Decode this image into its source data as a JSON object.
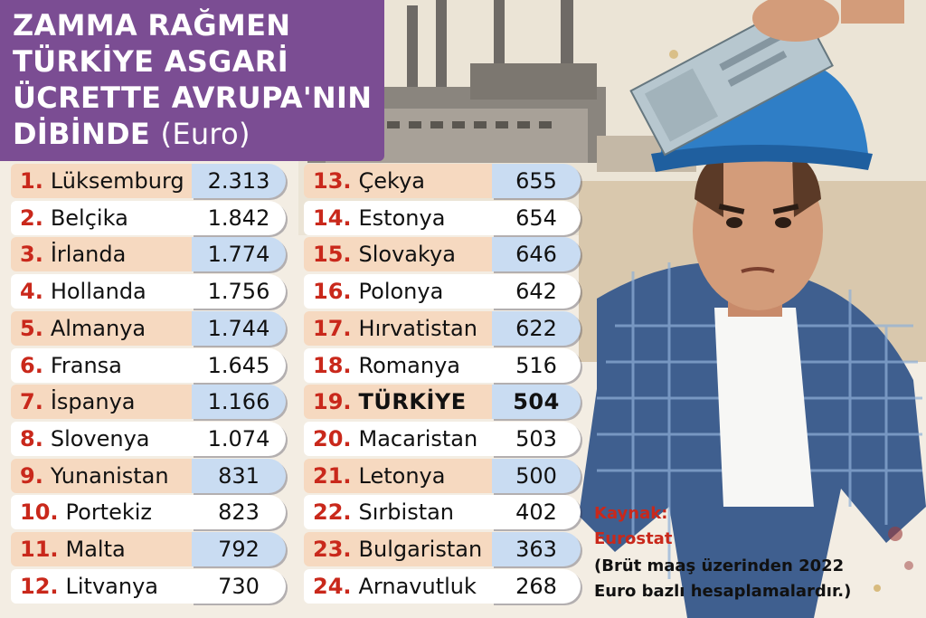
{
  "title_lines": [
    "ZAMMA RAĞMEN",
    "TÜRKİYE ASGARİ",
    "ÜCRETTE AVRUPA'NIN",
    "DİBİNDE"
  ],
  "title_unit": "(Euro)",
  "source": {
    "label": "Kaynak:",
    "name": "Eurostat",
    "note_line1": "(Brüt maaş üzerinden 2022",
    "note_line2": "Euro bazlı hesaplamalardır.)"
  },
  "colors": {
    "title_bg": "#7b4d93",
    "rank_red": "#c9281b",
    "peach": "#f6d9c0",
    "light_blue": "#c9dcf2"
  },
  "chart_data": {
    "type": "table",
    "columns": 2,
    "rows": [
      {
        "rank": "1.",
        "country": "Lüksemburg",
        "value": "2.313"
      },
      {
        "rank": "2.",
        "country": "Belçika",
        "value": "1.842"
      },
      {
        "rank": "3.",
        "country": "İrlanda",
        "value": "1.774"
      },
      {
        "rank": "4.",
        "country": "Hollanda",
        "value": "1.756"
      },
      {
        "rank": "5.",
        "country": "Almanya",
        "value": "1.744"
      },
      {
        "rank": "6.",
        "country": "Fransa",
        "value": "1.645"
      },
      {
        "rank": "7.",
        "country": "İspanya",
        "value": "1.166"
      },
      {
        "rank": "8.",
        "country": "Slovenya",
        "value": "1.074"
      },
      {
        "rank": "9.",
        "country": "Yunanistan",
        "value": "831"
      },
      {
        "rank": "10.",
        "country": "Portekiz",
        "value": "823"
      },
      {
        "rank": "11.",
        "country": "Malta",
        "value": "792"
      },
      {
        "rank": "12.",
        "country": "Litvanya",
        "value": "730"
      },
      {
        "rank": "13.",
        "country": "Çekya",
        "value": "655"
      },
      {
        "rank": "14.",
        "country": "Estonya",
        "value": "654"
      },
      {
        "rank": "15.",
        "country": "Slovakya",
        "value": "646"
      },
      {
        "rank": "16.",
        "country": "Polonya",
        "value": "642"
      },
      {
        "rank": "17.",
        "country": "Hırvatistan",
        "value": "622"
      },
      {
        "rank": "18.",
        "country": "Romanya",
        "value": "516"
      },
      {
        "rank": "19.",
        "country": "TÜRKİYE",
        "value": "504",
        "highlight": true
      },
      {
        "rank": "20.",
        "country": "Macaristan",
        "value": "503"
      },
      {
        "rank": "21.",
        "country": "Letonya",
        "value": "500"
      },
      {
        "rank": "22.",
        "country": "Sırbistan",
        "value": "402"
      },
      {
        "rank": "23.",
        "country": "Bulgaristan",
        "value": "363"
      },
      {
        "rank": "24.",
        "country": "Arnavutluk",
        "value": "268"
      }
    ]
  }
}
